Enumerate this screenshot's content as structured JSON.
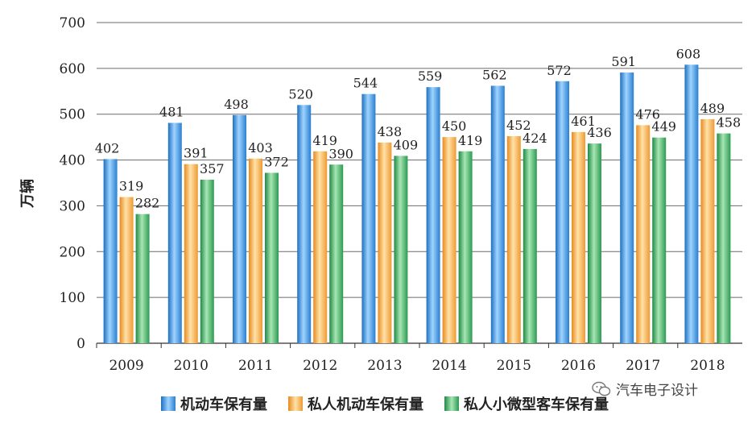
{
  "chart_data": {
    "type": "bar",
    "title": "",
    "xlabel": "",
    "ylabel": "万辆",
    "ylim": [
      0,
      700
    ],
    "yticks": [
      0,
      100,
      200,
      300,
      400,
      500,
      600,
      700
    ],
    "grid": true,
    "legend_position": "bottom",
    "categories": [
      "2009",
      "2010",
      "2011",
      "2012",
      "2013",
      "2014",
      "2015",
      "2016",
      "2017",
      "2018"
    ],
    "series": [
      {
        "name": "机动车保有量",
        "color": "#3a8fd9",
        "values": [
          402,
          481,
          498,
          520,
          544,
          559,
          562,
          572,
          591,
          608
        ]
      },
      {
        "name": "私人机动车保有量",
        "color": "#f5a94a",
        "values": [
          319,
          391,
          403,
          419,
          438,
          450,
          452,
          461,
          476,
          489
        ]
      },
      {
        "name": "私人小微型客车保有量",
        "color": "#3fa45e",
        "values": [
          282,
          357,
          372,
          390,
          409,
          419,
          424,
          436,
          449,
          458
        ]
      }
    ]
  },
  "legend": {
    "items": [
      {
        "label": "机动车保有量",
        "color": "#3a8fd9"
      },
      {
        "label": "私人机动车保有量",
        "color": "#f5a94a"
      },
      {
        "label": "私人小微型客车保有量",
        "color": "#3fa45e"
      }
    ]
  },
  "watermark": {
    "text": "汽车电子设计",
    "icon": "wechat-icon"
  }
}
